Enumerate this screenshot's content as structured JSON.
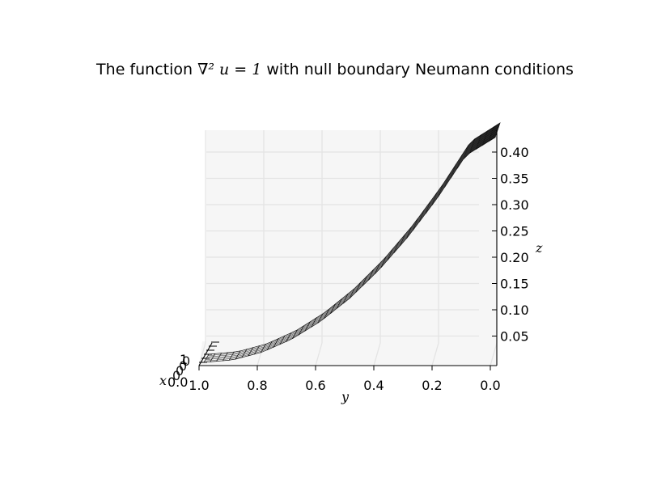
{
  "title": {
    "prefix": "The function ",
    "math": "∇² u = 1",
    "suffix": " with null boundary Neumann conditions"
  },
  "chart_data": {
    "type": "surface",
    "title": "The function ∇² u = 1 with null boundary Neumann conditions",
    "xlabel": "x",
    "ylabel": "y",
    "zlabel": "z",
    "y_ticks": [
      "1.0",
      "0.8",
      "0.6",
      "0.4",
      "0.2",
      "0.0"
    ],
    "y_tick_values": [
      1.0,
      0.8,
      0.6,
      0.4,
      0.2,
      0.0
    ],
    "z_ticks": [
      "0.05",
      "0.10",
      "0.15",
      "0.20",
      "0.25",
      "0.30",
      "0.35",
      "0.40"
    ],
    "z_tick_values": [
      0.05,
      0.1,
      0.15,
      0.2,
      0.25,
      0.3,
      0.35,
      0.4
    ],
    "x_ticks_visible": [
      "0.0",
      "1"
    ],
    "ylim": [
      0.0,
      1.0
    ],
    "zlim": [
      0.0,
      0.44
    ],
    "grid": true,
    "surface_profile": {
      "y": [
        1.0,
        0.9,
        0.8,
        0.7,
        0.6,
        0.5,
        0.4,
        0.3,
        0.2,
        0.1,
        0.0
      ],
      "z": [
        0.0,
        0.005,
        0.02,
        0.045,
        0.08,
        0.125,
        0.18,
        0.245,
        0.32,
        0.405,
        0.44
      ]
    },
    "colormap": "gray"
  }
}
